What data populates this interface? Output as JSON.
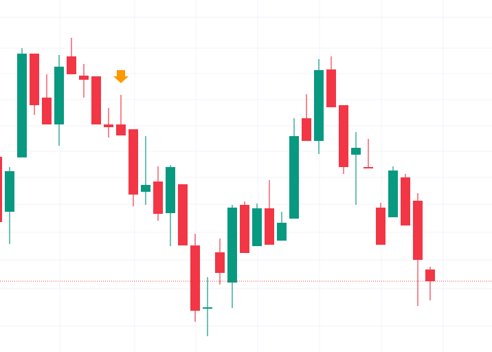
{
  "chart_data": {
    "type": "candlestick",
    "categories": [
      null,
      null,
      null,
      null,
      null,
      null,
      null,
      null,
      null,
      null,
      null,
      null,
      null,
      null,
      null,
      null,
      null,
      null,
      null,
      null,
      null,
      null,
      null,
      null,
      null,
      null,
      null,
      null,
      null,
      null,
      null,
      null,
      null,
      null,
      null,
      null
    ],
    "open": [
      284,
      204,
      283,
      434,
      370,
      331,
      430,
      402,
      401,
      331,
      331,
      324,
      233,
      248,
      202,
      244,
      155,
      63,
      145,
      101,
      214,
      154,
      209,
      162,
      194,
      340,
      307,
      411,
      359,
      287,
      269,
      210,
      196,
      254,
      220,
      120
    ],
    "high": [
      287,
      269,
      442,
      434,
      404,
      432,
      457,
      419,
      401,
      355,
      374,
      324,
      314,
      270,
      272,
      244,
      172,
      109,
      165,
      214,
      219,
      216,
      250,
      204,
      340,
      375,
      426,
      430,
      359,
      320,
      310,
      217,
      270,
      259,
      231,
      124
    ],
    "low": [
      187,
      157,
      283,
      345,
      331,
      300,
      404,
      370,
      331,
      312,
      315,
      212,
      214,
      191,
      154,
      155,
      44,
      23,
      98,
      64,
      144,
      154,
      156,
      162,
      194,
      307,
      288,
      356,
      259,
      214,
      267,
      156,
      196,
      184,
      67,
      75
    ],
    "close": [
      189,
      263,
      434,
      359,
      331,
      415,
      404,
      396,
      331,
      327,
      315,
      229,
      243,
      201,
      269,
      155,
      60,
      65,
      115,
      210,
      144,
      209,
      156,
      188,
      314,
      307,
      410,
      356,
      269,
      297,
      267,
      156,
      264,
      184,
      134,
      103
    ],
    "up_color": "#089981",
    "down_color": "#f23645",
    "price_line": 103,
    "price_line_color": "#f23645",
    "ylim": [
      0,
      512
    ]
  }
}
